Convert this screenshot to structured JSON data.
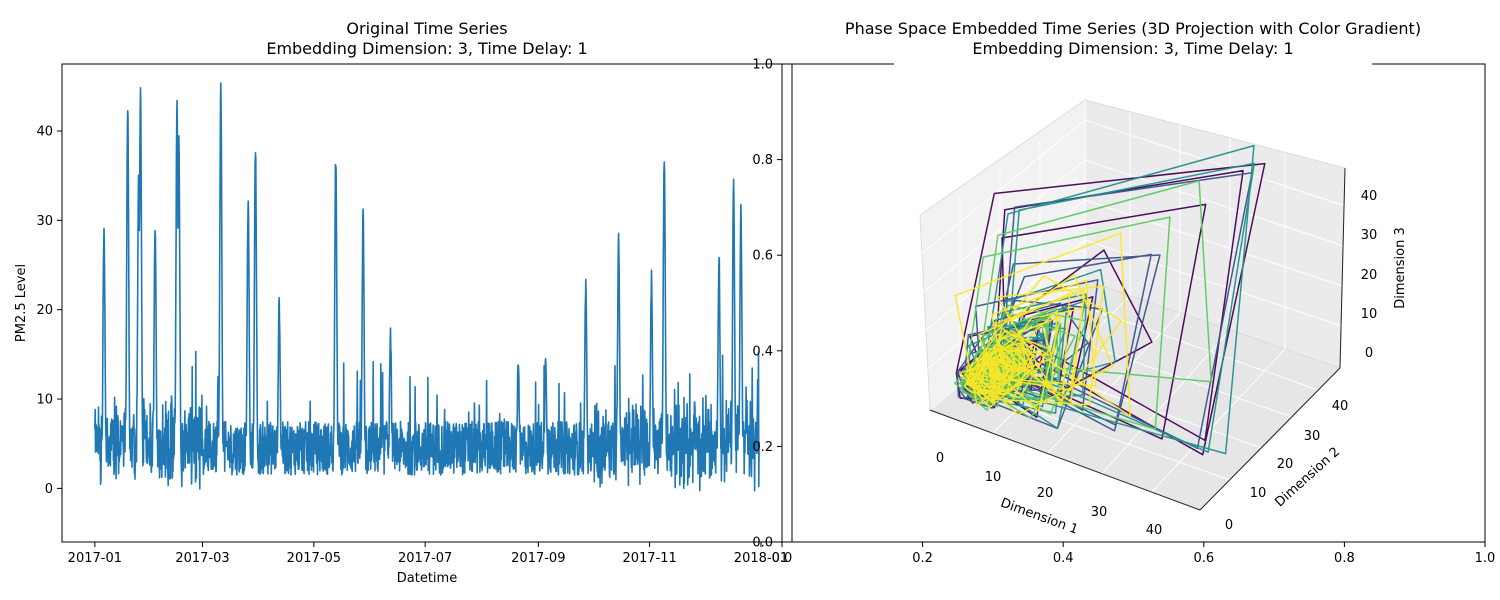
{
  "chart_data": [
    {
      "type": "line",
      "title": "Original Time Series",
      "subtitle": "Embedding Dimension: 3, Time Delay: 1",
      "xlabel": "Datetime",
      "ylabel": "PM2.5 Level",
      "x_ticks": [
        "2017-01",
        "2017-03",
        "2017-05",
        "2017-07",
        "2017-09",
        "2017-11",
        "2018-01"
      ],
      "y_ticks": [
        0,
        10,
        20,
        30,
        40
      ],
      "xlim": [
        "2016-12-14",
        "2018-01-18"
      ],
      "ylim": [
        -6,
        47.5
      ],
      "color": "#1f77b4",
      "x_start": "2017-01-01",
      "x_end": "2017-12-31",
      "peaks": [
        {
          "x": "2017-01-06",
          "y": 29.2
        },
        {
          "x": "2017-01-19",
          "y": 42.7
        },
        {
          "x": "2017-01-26",
          "y": 45.0
        },
        {
          "x": "2017-01-25",
          "y": 34.5
        },
        {
          "x": "2017-02-03",
          "y": 29.5
        },
        {
          "x": "2017-02-15",
          "y": 43.2
        },
        {
          "x": "2017-02-16",
          "y": 38.8
        },
        {
          "x": "2017-03-11",
          "y": 44.8
        },
        {
          "x": "2017-03-26",
          "y": 31.5
        },
        {
          "x": "2017-03-30",
          "y": 37.5
        },
        {
          "x": "2017-04-12",
          "y": 20.7
        },
        {
          "x": "2017-05-13",
          "y": 36.9
        },
        {
          "x": "2017-05-28",
          "y": 30.7
        },
        {
          "x": "2017-06-12",
          "y": 17.1
        },
        {
          "x": "2017-08-21",
          "y": 14.0
        },
        {
          "x": "2017-09-05",
          "y": 14.2
        },
        {
          "x": "2017-09-27",
          "y": 22.8
        },
        {
          "x": "2017-10-15",
          "y": 27.7
        },
        {
          "x": "2017-11-02",
          "y": 23.5
        },
        {
          "x": "2017-11-09",
          "y": 36.9
        },
        {
          "x": "2017-12-09",
          "y": 26.0
        },
        {
          "x": "2017-12-17",
          "y": 34.5
        },
        {
          "x": "2017-12-21",
          "y": 31.4
        }
      ],
      "min": -3.5,
      "baseline": 4.5
    },
    {
      "type": "line",
      "projection": "3d",
      "title": "Phase Space Embedded Time Series (3D Projection with Color Gradient)",
      "subtitle": "Embedding Dimension: 3, Time Delay: 1",
      "xlabel": "Dimension 1",
      "ylabel": "Dimension 2",
      "zlabel": "Dimension 3",
      "x_ticks": [
        0,
        10,
        20,
        30,
        40
      ],
      "y_ticks": [
        0,
        10,
        20,
        30,
        40
      ],
      "z_ticks": [
        0,
        10,
        20,
        30,
        40
      ],
      "frame_x_ticks": [
        "0.0",
        "0.2",
        "0.4",
        "0.6",
        "0.8",
        "1.0"
      ],
      "frame_y_ticks": [
        "0.0",
        "0.2",
        "0.4",
        "0.6",
        "0.8",
        "1.0"
      ],
      "colormap": "viridis",
      "colors": [
        "#440154",
        "#3b528b",
        "#21918c",
        "#5ec962",
        "#fde725"
      ]
    }
  ]
}
